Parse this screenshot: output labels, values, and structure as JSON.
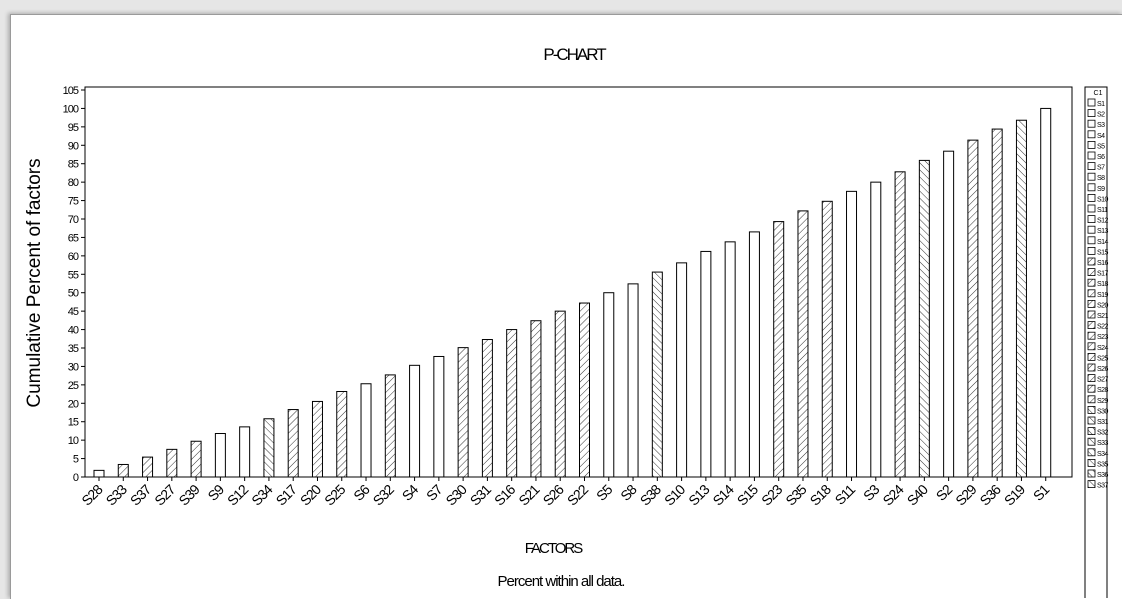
{
  "chart_data": {
    "type": "bar",
    "title": "P-CHART",
    "subtitle": "Percent within all data.",
    "xlabel": "FACTORS",
    "ylabel": "Cumulative Percent of factors",
    "ylim": [
      0,
      105
    ],
    "yticks": [
      0,
      5,
      10,
      15,
      20,
      25,
      30,
      35,
      40,
      45,
      50,
      55,
      60,
      65,
      70,
      75,
      80,
      85,
      90,
      95,
      100,
      105
    ],
    "grid": false,
    "legend_position": "right",
    "legend_title": "C1",
    "categories": [
      "S28",
      "S33",
      "S37",
      "S27",
      "S39",
      "S9",
      "S12",
      "S34",
      "S17",
      "S20",
      "S25",
      "S6",
      "S32",
      "S4",
      "S7",
      "S30",
      "S31",
      "S16",
      "S21",
      "S26",
      "S22",
      "S5",
      "S8",
      "S38",
      "S10",
      "S13",
      "S14",
      "S15",
      "S23",
      "S35",
      "S18",
      "S11",
      "S3",
      "S24",
      "S40",
      "S2",
      "S29",
      "S36",
      "S19",
      "S1"
    ],
    "values": [
      1.8,
      3.4,
      5.4,
      7.5,
      9.7,
      11.8,
      13.6,
      15.8,
      18.3,
      20.5,
      23.2,
      25.3,
      27.7,
      30.3,
      32.7,
      35.1,
      37.3,
      40.0,
      42.4,
      45.0,
      47.2,
      50.0,
      52.4,
      55.6,
      58.1,
      61.2,
      63.8,
      66.5,
      69.3,
      72.2,
      74.8,
      77.5,
      80.0,
      82.8,
      85.9,
      88.4,
      91.4,
      94.4,
      96.8,
      100.0
    ],
    "fills": [
      "open",
      "d1",
      "d1",
      "d1",
      "d1",
      "open",
      "open",
      "d2",
      "d1",
      "d1",
      "d1",
      "open",
      "d1",
      "open",
      "open",
      "d1",
      "d1",
      "d1",
      "d1",
      "d1",
      "d1",
      "open",
      "open",
      "d2",
      "open",
      "open",
      "open",
      "open",
      "d1",
      "d1",
      "d1",
      "open",
      "open",
      "d1",
      "d2",
      "open",
      "d1",
      "d1",
      "d2",
      "open"
    ],
    "legend_entries": [
      "S1",
      "S2",
      "S3",
      "S4",
      "S5",
      "S6",
      "S7",
      "S8",
      "S9",
      "S10",
      "S11",
      "S12",
      "S13",
      "S14",
      "S15",
      "S16",
      "S17",
      "S18",
      "S19",
      "S20",
      "S21",
      "S22",
      "S23",
      "S24",
      "S25",
      "S26",
      "S27",
      "S28",
      "S29",
      "S30",
      "S31",
      "S32",
      "S33",
      "S34",
      "S35",
      "S36",
      "S37"
    ],
    "legend_fills": [
      "open",
      "open",
      "open",
      "open",
      "open",
      "open",
      "open",
      "open",
      "open",
      "open",
      "open",
      "open",
      "open",
      "open",
      "open",
      "d1",
      "d1",
      "d1",
      "d1",
      "d1",
      "d1",
      "d1",
      "d1",
      "d1",
      "d1",
      "d1",
      "d1",
      "d1",
      "d1",
      "d2",
      "d2",
      "d2",
      "d2",
      "d2",
      "d2",
      "d2",
      "d2"
    ]
  }
}
